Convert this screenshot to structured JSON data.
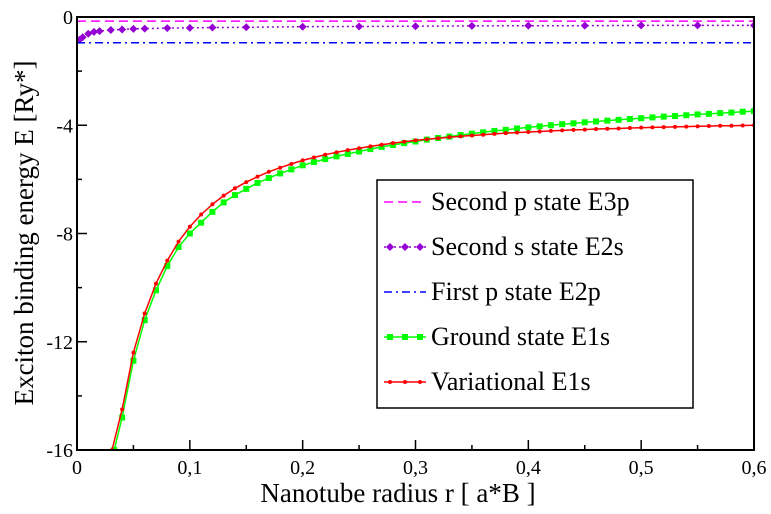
{
  "chart_data": {
    "type": "line",
    "xlabel": "Nanotube radius  r   [ a*B ]",
    "ylabel": "Exciton binding energy E   [Ry*]",
    "xlim": [
      0,
      0.6
    ],
    "ylim": [
      -16,
      0
    ],
    "xticks": [
      0,
      0.1,
      0.2,
      0.3,
      0.4,
      0.5,
      0.6
    ],
    "xtick_labels": [
      "0",
      "0,1",
      "0,2",
      "0,3",
      "0,4",
      "0,5",
      "0,6"
    ],
    "yticks": [
      0,
      -4,
      -8,
      -12,
      -16
    ],
    "ytick_labels": [
      "0",
      "-4",
      "-8",
      "-12",
      "-16"
    ],
    "grid": false,
    "legend_position": "center-right",
    "series": [
      {
        "name": "Second p state E3p",
        "color": "#ff00ff",
        "style": "dash",
        "marker": "none",
        "x": [
          0,
          0.6
        ],
        "y": [
          -0.15,
          -0.15
        ]
      },
      {
        "name": "Second s state E2s",
        "color": "#9400d3",
        "style": "dot",
        "marker": "diamond",
        "x": [
          0.002,
          0.005,
          0.01,
          0.015,
          0.02,
          0.03,
          0.04,
          0.05,
          0.06,
          0.08,
          0.1,
          0.12,
          0.15,
          0.2,
          0.25,
          0.3,
          0.35,
          0.4,
          0.45,
          0.5,
          0.55,
          0.6
        ],
        "y": [
          -0.85,
          -0.75,
          -0.62,
          -0.55,
          -0.52,
          -0.48,
          -0.46,
          -0.44,
          -0.43,
          -0.41,
          -0.4,
          -0.39,
          -0.38,
          -0.36,
          -0.35,
          -0.34,
          -0.33,
          -0.32,
          -0.32,
          -0.31,
          -0.31,
          -0.31
        ]
      },
      {
        "name": "First p state E2p",
        "color": "#0000ff",
        "style": "dashdot",
        "marker": "none",
        "x": [
          0,
          0.6
        ],
        "y": [
          -0.95,
          -0.95
        ]
      },
      {
        "name": "Ground state E1s",
        "color": "#00ff00",
        "style": "solid",
        "marker": "square",
        "x": [
          0.033,
          0.04,
          0.05,
          0.06,
          0.07,
          0.08,
          0.09,
          0.1,
          0.11,
          0.12,
          0.13,
          0.14,
          0.15,
          0.16,
          0.17,
          0.18,
          0.19,
          0.2,
          0.21,
          0.22,
          0.23,
          0.24,
          0.25,
          0.26,
          0.27,
          0.28,
          0.29,
          0.3,
          0.31,
          0.32,
          0.33,
          0.34,
          0.35,
          0.36,
          0.37,
          0.38,
          0.39,
          0.4,
          0.41,
          0.42,
          0.43,
          0.44,
          0.45,
          0.46,
          0.47,
          0.48,
          0.49,
          0.5,
          0.51,
          0.52,
          0.53,
          0.54,
          0.55,
          0.56,
          0.57,
          0.58,
          0.59,
          0.6
        ],
        "y": [
          -16.0,
          -14.8,
          -12.7,
          -11.2,
          -10.1,
          -9.2,
          -8.5,
          -8.0,
          -7.6,
          -7.2,
          -6.85,
          -6.58,
          -6.35,
          -6.13,
          -5.95,
          -5.78,
          -5.63,
          -5.48,
          -5.36,
          -5.25,
          -5.15,
          -5.06,
          -4.97,
          -4.88,
          -4.8,
          -4.73,
          -4.66,
          -4.6,
          -4.53,
          -4.47,
          -4.42,
          -4.36,
          -4.31,
          -4.26,
          -4.21,
          -4.17,
          -4.12,
          -4.08,
          -4.04,
          -4.0,
          -3.96,
          -3.93,
          -3.89,
          -3.86,
          -3.83,
          -3.8,
          -3.77,
          -3.74,
          -3.71,
          -3.68,
          -3.66,
          -3.63,
          -3.6,
          -3.58,
          -3.55,
          -3.53,
          -3.5,
          -3.48
        ]
      },
      {
        "name": "Variational E1s",
        "color": "#ff0000",
        "style": "solid",
        "marker": "dot",
        "x": [
          0.031,
          0.04,
          0.05,
          0.06,
          0.07,
          0.08,
          0.09,
          0.1,
          0.11,
          0.12,
          0.13,
          0.14,
          0.15,
          0.16,
          0.17,
          0.18,
          0.19,
          0.2,
          0.21,
          0.22,
          0.23,
          0.24,
          0.25,
          0.26,
          0.27,
          0.28,
          0.29,
          0.3,
          0.31,
          0.32,
          0.33,
          0.34,
          0.35,
          0.36,
          0.37,
          0.38,
          0.39,
          0.4,
          0.41,
          0.42,
          0.43,
          0.44,
          0.45,
          0.46,
          0.47,
          0.48,
          0.49,
          0.5,
          0.51,
          0.52,
          0.53,
          0.54,
          0.55,
          0.56,
          0.57,
          0.58,
          0.59,
          0.6
        ],
        "y": [
          -16.0,
          -14.5,
          -12.4,
          -10.95,
          -9.85,
          -9.0,
          -8.3,
          -7.75,
          -7.3,
          -6.92,
          -6.6,
          -6.33,
          -6.1,
          -5.9,
          -5.72,
          -5.57,
          -5.43,
          -5.3,
          -5.19,
          -5.09,
          -5.0,
          -4.92,
          -4.85,
          -4.78,
          -4.72,
          -4.66,
          -4.61,
          -4.56,
          -4.52,
          -4.48,
          -4.44,
          -4.41,
          -4.38,
          -4.35,
          -4.32,
          -4.29,
          -4.27,
          -4.25,
          -4.23,
          -4.21,
          -4.19,
          -4.17,
          -4.16,
          -4.14,
          -4.13,
          -4.12,
          -4.1,
          -4.09,
          -4.08,
          -4.07,
          -4.06,
          -4.05,
          -4.04,
          -4.03,
          -4.02,
          -4.02,
          -4.01,
          -4.0
        ]
      }
    ]
  }
}
